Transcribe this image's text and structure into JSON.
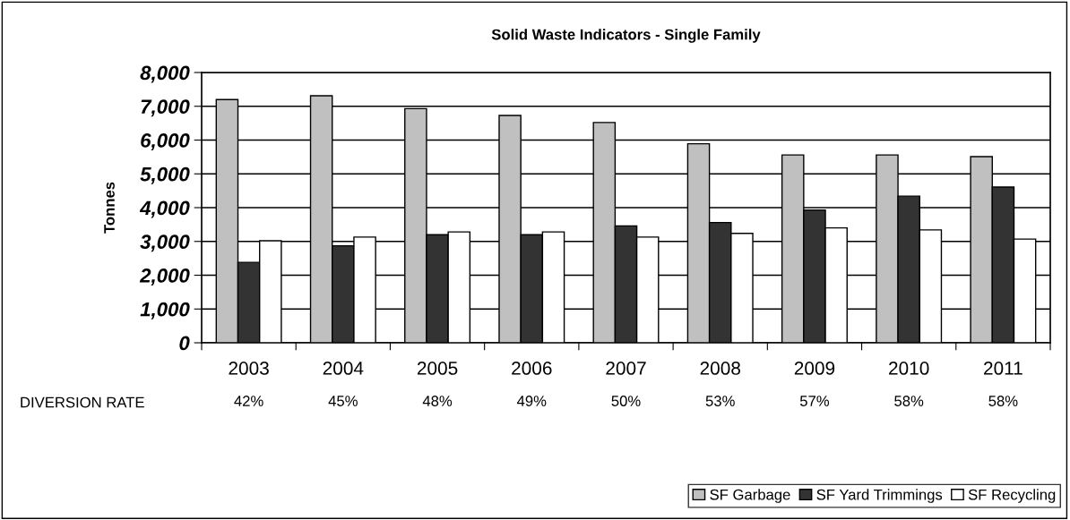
{
  "chart_data": {
    "type": "bar",
    "title": "Solid Waste Indicators - Single Family",
    "ylabel": "Tonnes",
    "categories": [
      "2003",
      "2004",
      "2005",
      "2006",
      "2007",
      "2008",
      "2009",
      "2010",
      "2011"
    ],
    "series": [
      {
        "name": "SF Garbage",
        "color": "#c0c0c0",
        "values": [
          7200,
          7310,
          6930,
          6730,
          6520,
          5890,
          5560,
          5560,
          5510
        ]
      },
      {
        "name": "SF Yard Trimmings",
        "color": "#333333",
        "values": [
          2380,
          2870,
          3200,
          3200,
          3460,
          3560,
          3930,
          4340,
          4610
        ]
      },
      {
        "name": "SF Recycling",
        "color": "#ffffff",
        "values": [
          3020,
          3130,
          3280,
          3280,
          3130,
          3240,
          3400,
          3340,
          3070
        ]
      }
    ],
    "ylim": [
      0,
      8000
    ],
    "yticks": [
      {
        "value": 0,
        "label": "0"
      },
      {
        "value": 1000,
        "label": "1,000"
      },
      {
        "value": 2000,
        "label": "2,000"
      },
      {
        "value": 3000,
        "label": "3,000"
      },
      {
        "value": 4000,
        "label": "4,000"
      },
      {
        "value": 5000,
        "label": "5,000"
      },
      {
        "value": 6000,
        "label": "6,000"
      },
      {
        "value": 7000,
        "label": "7,000"
      },
      {
        "value": 8000,
        "label": "8,000"
      }
    ],
    "grid": "y",
    "legend": "bottom right",
    "annotations": [
      "DIVERSION RATE",
      "42%",
      "45%",
      "48%",
      "49%",
      "50%",
      "53%",
      "57%",
      "58%",
      "58%"
    ]
  }
}
